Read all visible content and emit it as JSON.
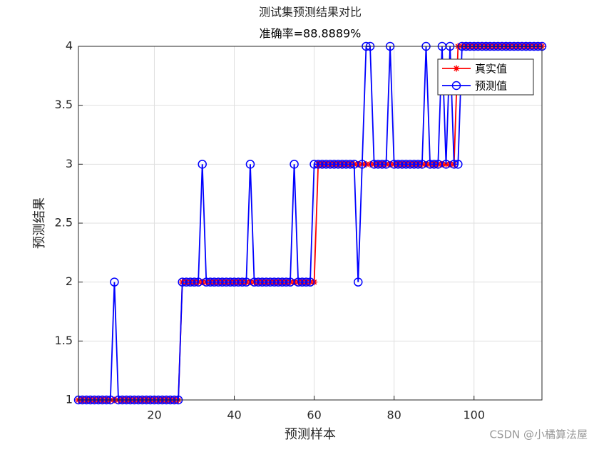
{
  "chart_data": {
    "type": "line",
    "title": [
      "测试集预测结果对比",
      "准确率=88.8889%"
    ],
    "x_label": "预测样本",
    "y_label": "预测结果",
    "watermark": "CSDN @小橘算法屋",
    "x": [
      1,
      2,
      3,
      4,
      5,
      6,
      7,
      8,
      9,
      10,
      11,
      12,
      13,
      14,
      15,
      16,
      17,
      18,
      19,
      20,
      21,
      22,
      23,
      24,
      25,
      26,
      27,
      28,
      29,
      30,
      31,
      32,
      33,
      34,
      35,
      36,
      37,
      38,
      39,
      40,
      41,
      42,
      43,
      44,
      45,
      46,
      47,
      48,
      49,
      50,
      51,
      52,
      53,
      54,
      55,
      56,
      57,
      58,
      59,
      60,
      61,
      62,
      63,
      64,
      65,
      66,
      67,
      68,
      69,
      70,
      71,
      72,
      73,
      74,
      75,
      76,
      77,
      78,
      79,
      80,
      81,
      82,
      83,
      84,
      85,
      86,
      87,
      88,
      89,
      90,
      91,
      92,
      93,
      94,
      95,
      96,
      97,
      98,
      99,
      100,
      101,
      102,
      103,
      104,
      105,
      106,
      107,
      108,
      109,
      110,
      111,
      112,
      113,
      114,
      115,
      116,
      117
    ],
    "series": [
      {
        "name": "真实值",
        "color": "#ff0000",
        "marker": "star",
        "values": [
          1,
          1,
          1,
          1,
          1,
          1,
          1,
          1,
          1,
          1,
          1,
          1,
          1,
          1,
          1,
          1,
          1,
          1,
          1,
          1,
          1,
          1,
          1,
          1,
          1,
          1,
          2,
          2,
          2,
          2,
          2,
          2,
          2,
          2,
          2,
          2,
          2,
          2,
          2,
          2,
          2,
          2,
          2,
          2,
          2,
          2,
          2,
          2,
          2,
          2,
          2,
          2,
          2,
          2,
          2,
          2,
          2,
          2,
          2,
          2,
          3,
          3,
          3,
          3,
          3,
          3,
          3,
          3,
          3,
          3,
          3,
          3,
          3,
          3,
          3,
          3,
          3,
          3,
          3,
          3,
          3,
          3,
          3,
          3,
          3,
          3,
          3,
          3,
          3,
          3,
          3,
          3,
          3,
          3,
          3,
          4,
          4,
          4,
          4,
          4,
          4,
          4,
          4,
          4,
          4,
          4,
          4,
          4,
          4,
          4,
          4,
          4,
          4,
          4,
          4,
          4,
          4
        ]
      },
      {
        "name": "预测值",
        "color": "#0000ff",
        "marker": "circle",
        "values": [
          1,
          1,
          1,
          1,
          1,
          1,
          1,
          1,
          1,
          2,
          1,
          1,
          1,
          1,
          1,
          1,
          1,
          1,
          1,
          1,
          1,
          1,
          1,
          1,
          1,
          1,
          2,
          2,
          2,
          2,
          2,
          3,
          2,
          2,
          2,
          2,
          2,
          2,
          2,
          2,
          2,
          2,
          2,
          3,
          2,
          2,
          2,
          2,
          2,
          2,
          2,
          2,
          2,
          2,
          3,
          2,
          2,
          2,
          2,
          3,
          3,
          3,
          3,
          3,
          3,
          3,
          3,
          3,
          3,
          3,
          2,
          3,
          4,
          4,
          3,
          3,
          3,
          3,
          4,
          3,
          3,
          3,
          3,
          3,
          3,
          3,
          3,
          4,
          3,
          3,
          3,
          4,
          3,
          4,
          3,
          3,
          4,
          4,
          4,
          4,
          4,
          4,
          4,
          4,
          4,
          4,
          4,
          4,
          4,
          4,
          4,
          4,
          4,
          4,
          4,
          4,
          4
        ]
      }
    ],
    "xlim": [
      1,
      117
    ],
    "ylim": [
      1,
      4
    ],
    "xticks": [
      20,
      40,
      60,
      80,
      100
    ],
    "yticks": [
      1,
      1.5,
      2,
      2.5,
      3,
      3.5,
      4
    ],
    "grid": true,
    "legend": "top-right"
  }
}
